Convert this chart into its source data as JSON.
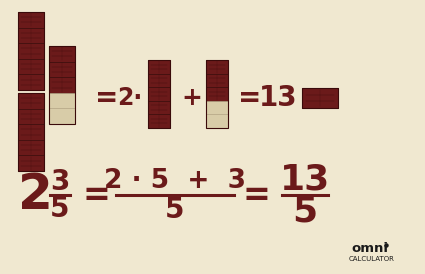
{
  "bg_color": "#f0e8d0",
  "choc_dark": "#6b1a1a",
  "choc_grid": "#3a0a0a",
  "choc_empty": "#d8cca8",
  "choc_empty_border": "#b0a080",
  "text_color": "#6b1a1a",
  "omni_color": "#1a1a1a",
  "fig_width": 4.25,
  "fig_height": 2.74,
  "dpi": 100
}
